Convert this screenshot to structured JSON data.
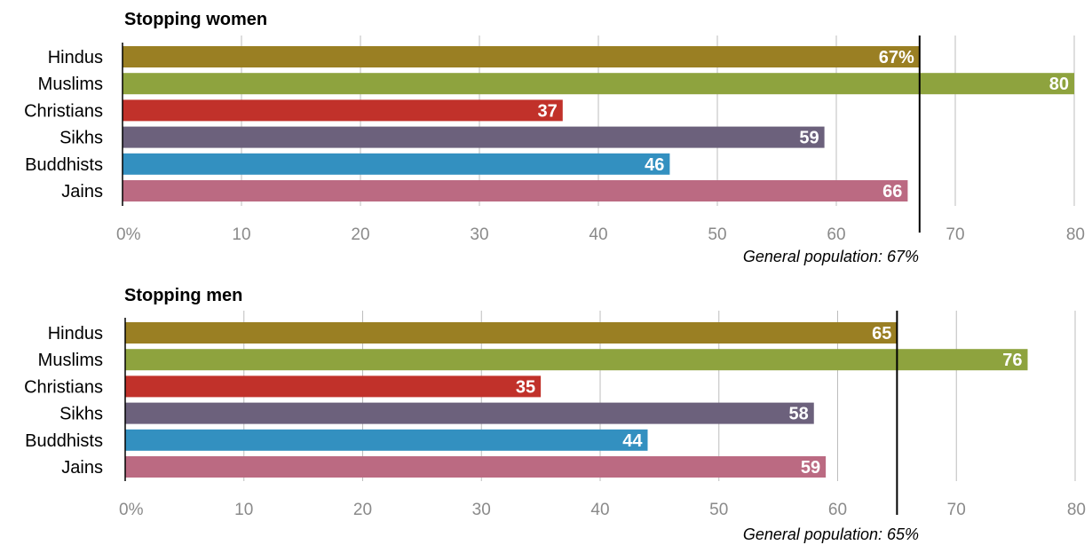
{
  "colors": {
    "Hindus": "#9a7f23",
    "Muslims": "#8ea33e",
    "Christians": "#c1312a",
    "Sikhs": "#6c617c",
    "Buddhists": "#3390c0",
    "Jains": "#bb6a82"
  },
  "chart_data": [
    {
      "type": "bar",
      "title": "Stopping women",
      "categories": [
        "Hindus",
        "Muslims",
        "Christians",
        "Sikhs",
        "Buddhists",
        "Jains"
      ],
      "values": [
        67,
        80,
        37,
        59,
        46,
        66
      ],
      "value_labels": [
        "67%",
        "80",
        "37",
        "59",
        "46",
        "66"
      ],
      "xlim": [
        0,
        80
      ],
      "ticks": [
        0,
        10,
        20,
        30,
        40,
        50,
        60,
        70,
        80
      ],
      "tick_labels": [
        "0%",
        "10",
        "20",
        "30",
        "40",
        "50",
        "60",
        "70",
        "80"
      ],
      "reference": {
        "value": 67,
        "label": "General population: 67%"
      },
      "grid": true
    },
    {
      "type": "bar",
      "title": "Stopping men",
      "categories": [
        "Hindus",
        "Muslims",
        "Christians",
        "Sikhs",
        "Buddhists",
        "Jains"
      ],
      "values": [
        65,
        76,
        35,
        58,
        44,
        59
      ],
      "value_labels": [
        "65",
        "76",
        "35",
        "58",
        "44",
        "59"
      ],
      "xlim": [
        0,
        80
      ],
      "ticks": [
        0,
        10,
        20,
        30,
        40,
        50,
        60,
        70,
        80
      ],
      "tick_labels": [
        "0%",
        "10",
        "20",
        "30",
        "40",
        "50",
        "60",
        "70",
        "80"
      ],
      "reference": {
        "value": 65,
        "label": "General population: 65%"
      },
      "grid": true
    }
  ]
}
